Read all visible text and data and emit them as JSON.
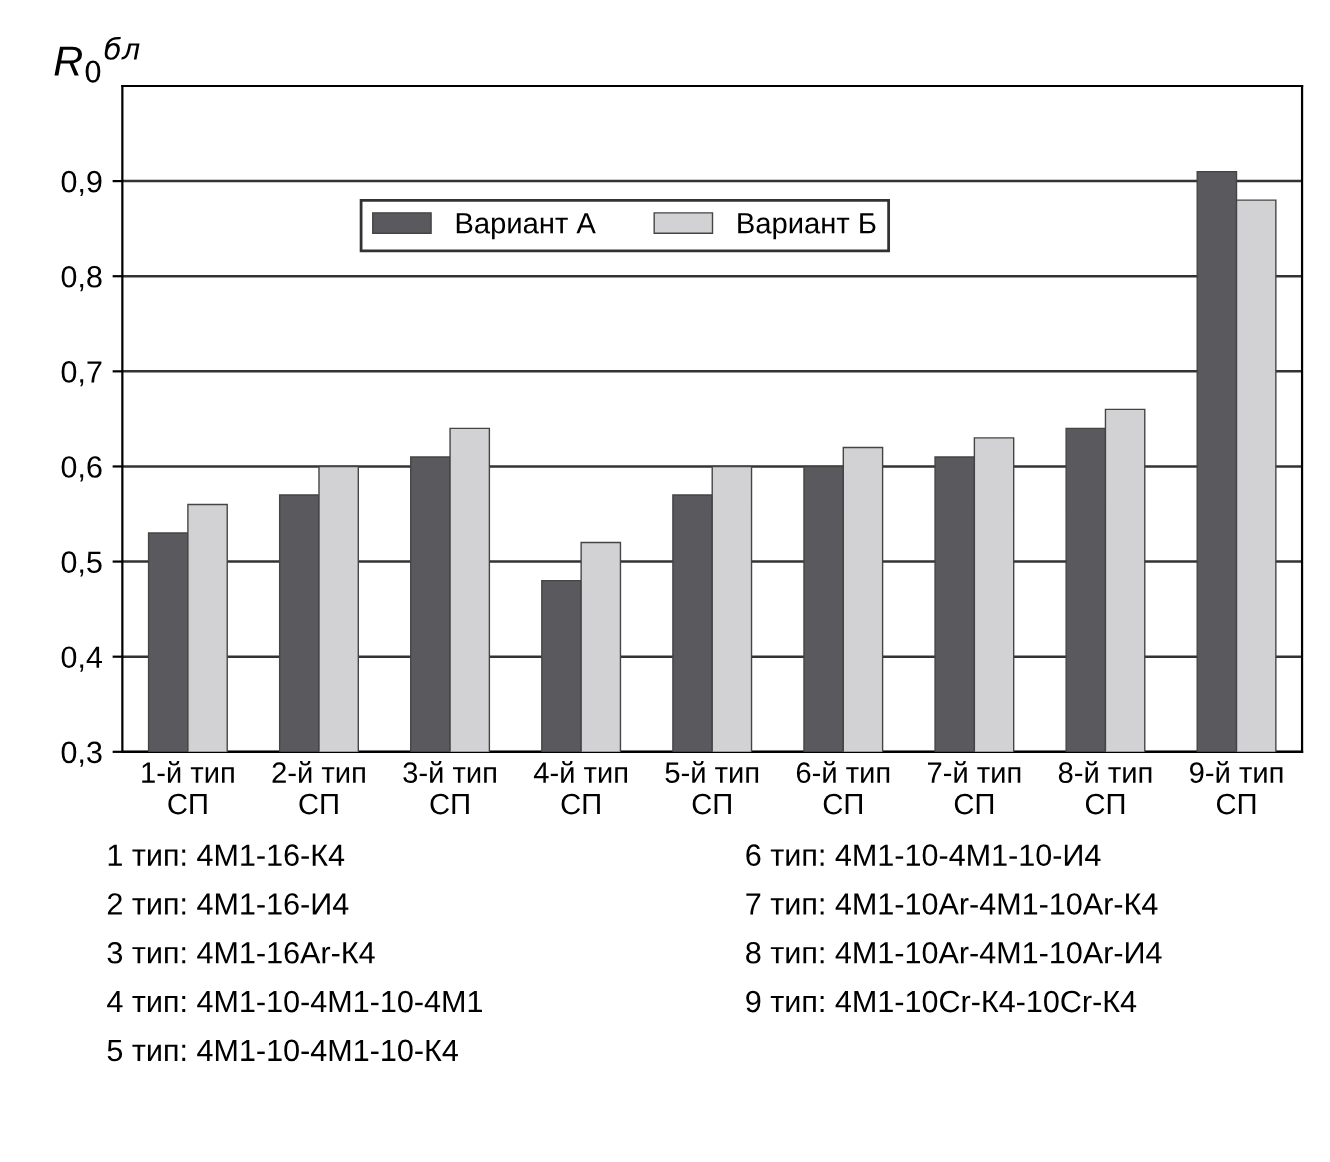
{
  "chart_data": {
    "type": "bar",
    "ylabel": "R$_{0}$$^{бл}$",
    "categories": [
      "1-й тип\nСП",
      "2-й тип\nСП",
      "3-й тип\nСП",
      "4-й тип\nСП",
      "5-й тип\nСП",
      "6-й тип\nСП",
      "7-й тип\nСП",
      "8-й тип\nСП",
      "9-й тип\nСП"
    ],
    "series": [
      {
        "name": "Вариант А",
        "color": "#5a5a5e",
        "values": [
          0.53,
          0.57,
          0.61,
          0.48,
          0.57,
          0.6,
          0.61,
          0.64,
          0.91
        ]
      },
      {
        "name": "Вариант Б",
        "color": "#d2d2d4",
        "values": [
          0.56,
          0.6,
          0.64,
          0.52,
          0.6,
          0.62,
          0.63,
          0.66,
          0.88
        ]
      }
    ],
    "ylim": [
      0.3,
      1.0
    ],
    "yticks": [
      {
        "value": 0.3,
        "label": "0,3"
      },
      {
        "value": 0.4,
        "label": "0,4"
      },
      {
        "value": 0.5,
        "label": "0,5"
      },
      {
        "value": 0.6,
        "label": "0,6"
      },
      {
        "value": 0.7,
        "label": "0,7"
      },
      {
        "value": 0.8,
        "label": "0,8"
      },
      {
        "value": 0.9,
        "label": "0,9"
      }
    ],
    "grid": "y",
    "legend": "top left",
    "annotations": [
      "1 тип: 4М1-16-К4",
      "2 тип: 4М1-16-И4",
      "3 тип: 4М1-16Ar-К4",
      "4 тип: 4М1-10-4М1-10-4М1",
      "5 тип: 4М1-10-4М1-10-К4",
      "6 тип: 4М1-10-4М1-10-И4",
      "7 тип: 4М1-10Ar-4М1-10Ar-К4",
      "8 тип: 4М1-10Ar-4М1-10Ar-И4",
      "9 тип: 4М1-10Cr-К4-10Cr-К4"
    ]
  }
}
